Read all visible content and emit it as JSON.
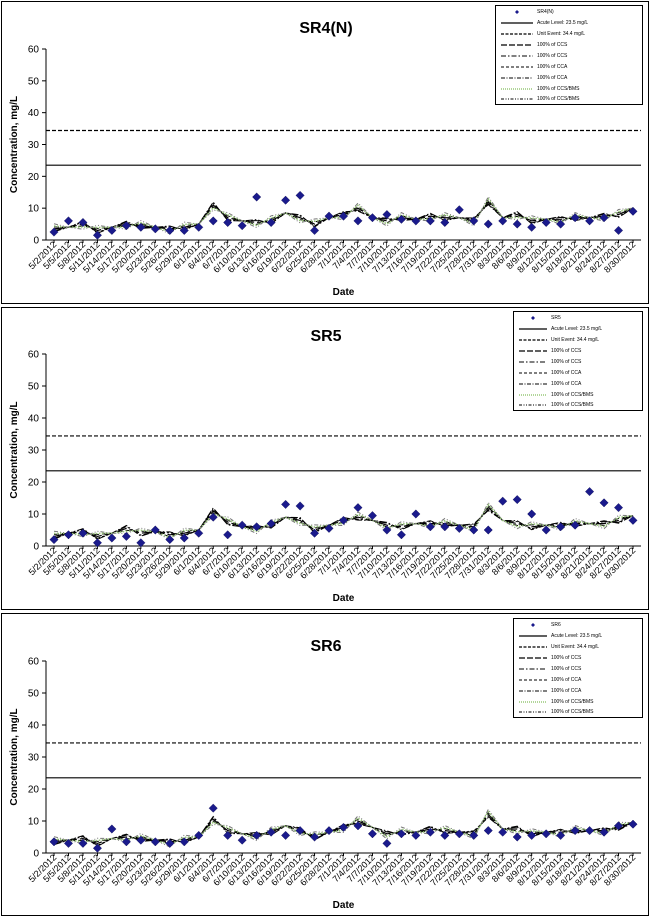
{
  "legend_items": [
    {
      "label": "",
      "key": "obs"
    },
    {
      "label": "Acute Level: 23.5 mg/L",
      "key": "acute"
    },
    {
      "label": "Unit Event: 34.4 mg/L",
      "key": "unit"
    },
    {
      "label": "100% of CCS",
      "key": "s1"
    },
    {
      "label": "100% of CCS",
      "key": "s2"
    },
    {
      "label": "100% of CCA",
      "key": "s3"
    },
    {
      "label": "100% of CCA",
      "key": "s4"
    },
    {
      "label": "100% of CCS/BMS",
      "key": "s5"
    },
    {
      "label": "100% of CCS/BMS",
      "key": "s6"
    }
  ],
  "styles": {
    "marker_color": "#1a1a8c",
    "line_color": "#000000",
    "ccs_color": "#777777",
    "green_color": "#98c878"
  },
  "chart_data": [
    {
      "type": "line",
      "title": "SR4(N)",
      "obs_legend": "SR4(N)",
      "xlabel": "Date",
      "ylabel": "Concentration, mg/L",
      "ylim": [
        0,
        60
      ],
      "yticks": [
        0,
        10,
        20,
        30,
        40,
        50,
        60
      ],
      "x_tick_labels": [
        "5/2/2012",
        "5/5/2012",
        "5/8/2012",
        "5/11/2012",
        "5/14/2012",
        "5/17/2012",
        "5/20/2012",
        "5/23/2012",
        "5/26/2012",
        "5/29/2012",
        "6/1/2012",
        "6/4/2012",
        "6/7/2012",
        "6/10/2012",
        "6/13/2012",
        "6/16/2012",
        "6/19/2012",
        "6/22/2012",
        "6/25/2012",
        "6/28/2012",
        "7/1/2012",
        "7/4/2012",
        "7/7/2012",
        "7/10/2012",
        "7/13/2012",
        "7/16/2012",
        "7/19/2012",
        "7/22/2012",
        "7/25/2012",
        "7/28/2012",
        "7/31/2012",
        "8/3/2012",
        "8/6/2012",
        "8/9/2012",
        "8/12/2012",
        "8/15/2012",
        "8/18/2012",
        "8/21/2012",
        "8/24/2012",
        "8/27/2012",
        "8/30/2012"
      ],
      "reference_lines": [
        {
          "name": "Acute Level: 23.5 mg/L",
          "y": 23.5,
          "style": "solid"
        },
        {
          "name": "Unit Event: 34.4 mg/L",
          "y": 34.4,
          "style": "dashed"
        }
      ],
      "observations": {
        "x": [
          0,
          1,
          2,
          3,
          4,
          5,
          6,
          7,
          8,
          9,
          10,
          11,
          12,
          13,
          14,
          15,
          16,
          17,
          18,
          19,
          20,
          21,
          22,
          23,
          24,
          25,
          26,
          27,
          28,
          29,
          30,
          31,
          32,
          33,
          34,
          35,
          36,
          37,
          38,
          39,
          40
        ],
        "y": [
          2.5,
          6,
          5.5,
          1.5,
          3,
          4.5,
          4,
          3.5,
          3,
          3,
          4,
          6,
          5.5,
          4.5,
          13.5,
          5.5,
          12.5,
          14,
          3,
          7.5,
          7.5,
          6,
          7,
          8,
          6.5,
          6,
          6,
          5.5,
          9.5,
          6,
          5,
          6,
          5,
          4,
          5.5,
          5,
          7,
          6,
          7,
          3,
          9
        ]
      },
      "series_values": [
        3.5,
        4,
        5,
        3,
        4,
        5,
        4.5,
        4,
        3.5,
        4,
        5,
        11,
        7,
        6,
        5.5,
        6,
        8.5,
        7,
        5,
        7,
        8,
        10,
        7,
        6,
        7,
        6.5,
        7.5,
        7,
        7,
        6,
        12,
        7,
        8,
        6,
        6.5,
        6.5,
        7,
        7,
        7.5,
        8,
        10
      ]
    },
    {
      "type": "line",
      "title": "SR5",
      "obs_legend": "SR5",
      "xlabel": "Date",
      "ylabel": "Concentration, mg/L",
      "ylim": [
        0,
        60
      ],
      "yticks": [
        0,
        10,
        20,
        30,
        40,
        50,
        60
      ],
      "x_tick_labels": [
        "5/2/2012",
        "5/5/2012",
        "5/8/2012",
        "5/11/2012",
        "5/14/2012",
        "5/17/2012",
        "5/20/2012",
        "5/23/2012",
        "5/26/2012",
        "5/29/2012",
        "6/1/2012",
        "6/4/2012",
        "6/7/2012",
        "6/10/2012",
        "6/13/2012",
        "6/16/2012",
        "6/19/2012",
        "6/22/2012",
        "6/25/2012",
        "6/28/2012",
        "7/1/2012",
        "7/4/2012",
        "7/7/2012",
        "7/10/2012",
        "7/13/2012",
        "7/16/2012",
        "7/19/2012",
        "7/22/2012",
        "7/25/2012",
        "7/28/2012",
        "7/31/2012",
        "8/3/2012",
        "8/6/2012",
        "8/9/2012",
        "8/12/2012",
        "8/15/2012",
        "8/18/2012",
        "8/21/2012",
        "8/24/2012",
        "8/27/2012",
        "8/30/2012"
      ],
      "reference_lines": [
        {
          "name": "Acute Level: 23.5 mg/L",
          "y": 23.5,
          "style": "solid"
        },
        {
          "name": "Unit Event: 34.4 mg/L",
          "y": 34.4,
          "style": "dashed"
        }
      ],
      "observations": {
        "x": [
          0,
          1,
          2,
          3,
          4,
          5,
          6,
          7,
          8,
          9,
          10,
          11,
          12,
          13,
          14,
          15,
          16,
          17,
          18,
          19,
          20,
          21,
          22,
          23,
          24,
          25,
          26,
          27,
          28,
          29,
          30,
          31,
          32,
          33,
          34,
          35,
          36,
          37,
          38,
          39,
          40
        ],
        "y": [
          2,
          3.5,
          4,
          1,
          2.5,
          3,
          1,
          5,
          2,
          2.5,
          4,
          9,
          3.5,
          6.5,
          6,
          7,
          13,
          12.5,
          4,
          5.5,
          8,
          12,
          9.5,
          5,
          3.5,
          10,
          6,
          6,
          5.5,
          5,
          5,
          14,
          14.5,
          10,
          5,
          6,
          6.5,
          17,
          13.5,
          12,
          8
        ]
      },
      "series_values": [
        3,
        4,
        4.5,
        3,
        4,
        5.5,
        4,
        4.5,
        3.5,
        4,
        5,
        11,
        7.5,
        6,
        5.5,
        6.5,
        9,
        8,
        5,
        6.5,
        8,
        9,
        8,
        6.5,
        6,
        7,
        7,
        7,
        6.5,
        6,
        12,
        8,
        7,
        6,
        6.5,
        6.5,
        7,
        7,
        7,
        8,
        9.5
      ]
    },
    {
      "type": "line",
      "title": "SR6",
      "obs_legend": "SR6",
      "xlabel": "Date",
      "ylabel": "Concentration, mg/L",
      "ylim": [
        0,
        60
      ],
      "yticks": [
        0,
        10,
        20,
        30,
        40,
        50,
        60
      ],
      "x_tick_labels": [
        "5/2/2012",
        "5/5/2012",
        "5/8/2012",
        "5/11/2012",
        "5/14/2012",
        "5/17/2012",
        "5/20/2012",
        "5/23/2012",
        "5/26/2012",
        "5/29/2012",
        "6/1/2012",
        "6/4/2012",
        "6/7/2012",
        "6/10/2012",
        "6/13/2012",
        "6/16/2012",
        "6/19/2012",
        "6/22/2012",
        "6/25/2012",
        "6/28/2012",
        "7/1/2012",
        "7/4/2012",
        "7/7/2012",
        "7/10/2012",
        "7/13/2012",
        "7/16/2012",
        "7/19/2012",
        "7/22/2012",
        "7/25/2012",
        "7/28/2012",
        "7/31/2012",
        "8/3/2012",
        "8/6/2012",
        "8/9/2012",
        "8/12/2012",
        "8/15/2012",
        "8/18/2012",
        "8/21/2012",
        "8/24/2012",
        "8/27/2012",
        "8/30/2012"
      ],
      "reference_lines": [
        {
          "name": "Acute Level: 23.5 mg/L",
          "y": 23.5,
          "style": "solid"
        },
        {
          "name": "Unit Event: 34.4 mg/L",
          "y": 34.4,
          "style": "dashed"
        }
      ],
      "observations": {
        "x": [
          0,
          1,
          2,
          3,
          4,
          5,
          6,
          7,
          8,
          9,
          10,
          11,
          12,
          13,
          14,
          15,
          16,
          17,
          18,
          19,
          20,
          21,
          22,
          23,
          24,
          25,
          26,
          27,
          28,
          29,
          30,
          31,
          32,
          33,
          34,
          35,
          36,
          37,
          38,
          39,
          40
        ],
        "y": [
          3.5,
          3,
          3,
          1.5,
          7.5,
          3.5,
          4,
          3.5,
          3,
          3.5,
          5.5,
          14,
          5.5,
          4,
          5.5,
          6.5,
          5.5,
          7,
          5,
          7,
          8,
          8.5,
          6,
          3,
          6,
          5.5,
          6.5,
          5.5,
          6,
          5.5,
          7,
          6.5,
          5,
          5.5,
          6,
          5.5,
          7,
          7,
          6.5,
          8.5,
          9
        ]
      },
      "series_values": [
        3.5,
        4,
        4.5,
        3,
        4.5,
        5,
        4.5,
        4,
        3.5,
        4,
        5,
        10.5,
        7,
        6,
        5.5,
        6.5,
        8.5,
        7,
        5,
        6.5,
        8,
        10,
        8,
        6,
        6.5,
        6.5,
        7.5,
        7,
        6.5,
        6,
        12,
        7.5,
        7.5,
        6,
        6.5,
        6.5,
        7,
        7,
        7,
        8,
        9.5
      ]
    }
  ]
}
